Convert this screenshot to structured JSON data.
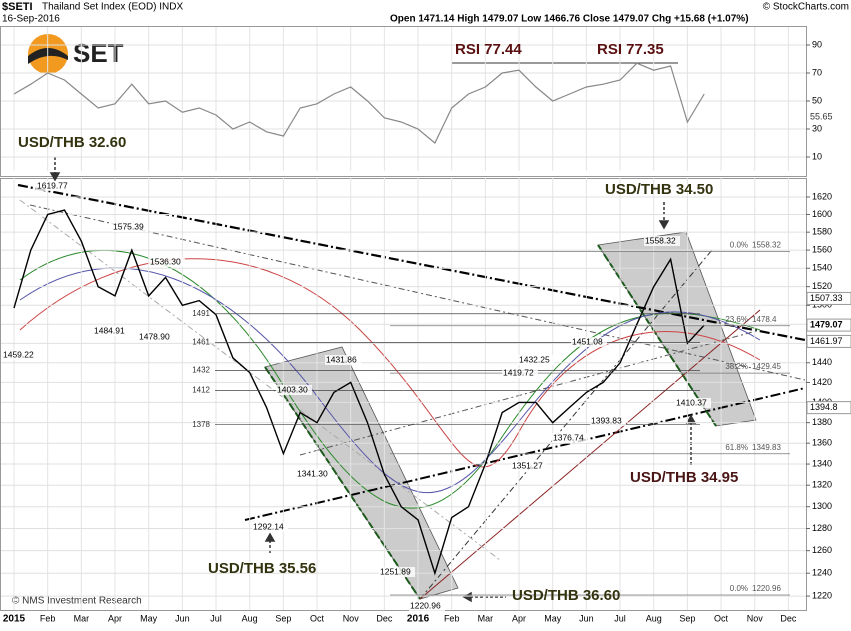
{
  "header": {
    "symbol": "$SETI",
    "name": "Thailand Set Index (EOD) INDX",
    "date": "16-Sep-2016",
    "quote": "Open 1471.14 High 1479.07 Low 1466.76 Close 1479.07 Chg +15.68 (+1.07%)",
    "source": "© StockCharts.com",
    "logo": "SET",
    "credit": "© NMS Investment Research"
  },
  "chart_data": [
    {
      "type": "line",
      "name": "rsi",
      "annotations": [
        "RSI 77.44",
        "RSI 77.35"
      ],
      "categories": [
        "2015",
        null,
        "Feb",
        null,
        "Mar",
        null,
        "Apr",
        null,
        "May",
        null,
        "Jun",
        null,
        "Jul",
        null,
        "Aug",
        null,
        "Sep",
        null,
        "Oct",
        null,
        "Nov",
        null,
        "Dec",
        null,
        "2016",
        null,
        "Feb",
        null,
        "Mar",
        null,
        "Apr",
        null,
        "May",
        null,
        "Jun",
        null,
        "Jul",
        null,
        "Aug",
        null,
        "Sep",
        null,
        "Oct",
        null,
        "Nov",
        null,
        "Dec",
        null
      ],
      "series": [
        {
          "color": "#888888",
          "values": [
            55,
            62,
            70,
            65,
            55,
            45,
            48,
            62,
            48,
            50,
            42,
            45,
            40,
            30,
            35,
            28,
            25,
            45,
            48,
            55,
            60,
            50,
            38,
            35,
            30,
            20,
            45,
            55,
            60,
            70,
            72,
            60,
            50,
            55,
            60,
            62,
            65,
            77,
            72,
            75,
            35,
            55,
            null,
            null,
            null,
            null,
            null,
            null
          ]
        }
      ],
      "last_label": "55.65",
      "ylim": [
        0,
        100
      ],
      "yticks": [
        10,
        30,
        50,
        70,
        90
      ],
      "grid": true
    },
    {
      "type": "line",
      "name": "price",
      "log_scale": true,
      "categories": [
        "2015",
        null,
        "Feb",
        null,
        "Mar",
        null,
        "Apr",
        null,
        "May",
        null,
        "Jun",
        null,
        "Jul",
        null,
        "Aug",
        null,
        "Sep",
        null,
        "Oct",
        null,
        "Nov",
        null,
        "Dec",
        null,
        "2016",
        null,
        "Feb",
        null,
        "Mar",
        null,
        "Apr",
        null,
        "May",
        null,
        "Jun",
        null,
        "Jul",
        null,
        "Aug",
        null,
        "Sep",
        null,
        "Oct",
        null,
        "Nov",
        null,
        "Dec",
        null
      ],
      "series": [
        {
          "color": "#000000",
          "values": [
            1497,
            1560,
            1600,
            1605,
            1570,
            1520,
            1510,
            1560,
            1510,
            1530,
            1500,
            1505,
            1490,
            1445,
            1430,
            1395,
            1350,
            1390,
            1380,
            1410,
            1420,
            1380,
            1330,
            1300,
            1288,
            1240,
            1290,
            1300,
            1340,
            1390,
            1400,
            1400,
            1380,
            1395,
            1410,
            1420,
            1440,
            1480,
            1520,
            1550,
            1460,
            1479,
            null,
            null,
            null,
            null,
            null,
            null
          ]
        }
      ],
      "ylim": [
        1208,
        1642
      ],
      "yticks": [
        1220,
        1240,
        1260,
        1280,
        1300,
        1320,
        1340,
        1360,
        1380,
        1400,
        1420,
        1440,
        1460,
        1480,
        1500,
        1520,
        1540,
        1560,
        1580,
        1600,
        1620
      ],
      "grid": true,
      "levels": [
        1491,
        1461,
        1432,
        1412,
        1378
      ],
      "fib": [
        {
          "pct": "0.0%",
          "value": 1558.32
        },
        {
          "pct": "23.6%",
          "value": 1478.4
        },
        {
          "pct": "38.2%",
          "value": 1429.45
        },
        {
          "pct": "61.8%",
          "value": 1349.83
        },
        {
          "pct": "0.0%",
          "value": 1220.96
        }
      ],
      "right_tags": [
        1507.33,
        1479.07,
        1461.97,
        1394.8
      ],
      "point_labels": [
        "1619.77",
        "1575.39",
        "1536.30",
        "1484.91",
        "1478.90",
        "1459.22",
        "1431.86",
        "1403.30",
        "1341.30",
        "1292.14",
        "1251.89",
        "1220.96",
        "1432.25",
        "1419.72",
        "1451.08",
        "1351.27",
        "1376.74",
        "1393.83",
        "1558.32",
        "1410.37"
      ],
      "fx_notes": [
        "USD/THB 32.60",
        "USD/THB 34.50",
        "USD/THB 35.56",
        "USD/THB 36.60",
        "USD/THB 34.95"
      ]
    }
  ]
}
